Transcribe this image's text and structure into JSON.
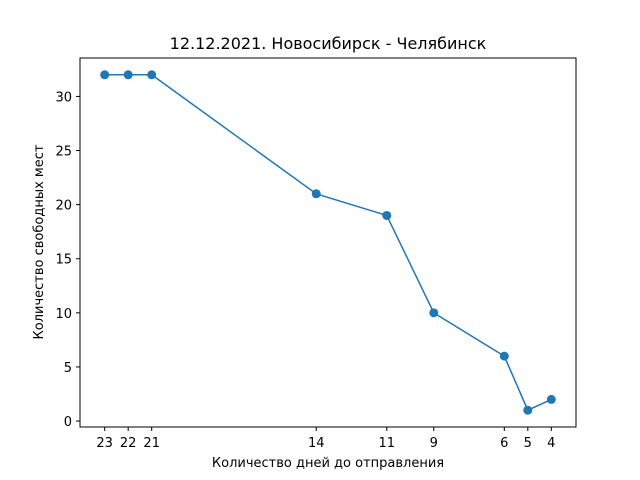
{
  "chart_data": {
    "type": "line",
    "title": "12.12.2021. Новосибирск - Челябинск",
    "xlabel": "Количество дней до отправления",
    "ylabel": "Количество свободных мест",
    "x_inverted": true,
    "xlim": [
      24.05,
      2.95
    ],
    "ylim": [
      -0.55,
      33.55
    ],
    "x_ticks": [
      23,
      22,
      21,
      14,
      11,
      9,
      6,
      5,
      4
    ],
    "y_ticks": [
      0,
      5,
      10,
      15,
      20,
      25,
      30
    ],
    "grid": false,
    "series": [
      {
        "color": "#1f77b4",
        "marker": "circle",
        "x": [
          23,
          22,
          21,
          14,
          11,
          9,
          6,
          5,
          4
        ],
        "values": [
          32,
          32,
          32,
          21,
          19,
          10,
          6,
          1,
          2
        ]
      }
    ]
  }
}
